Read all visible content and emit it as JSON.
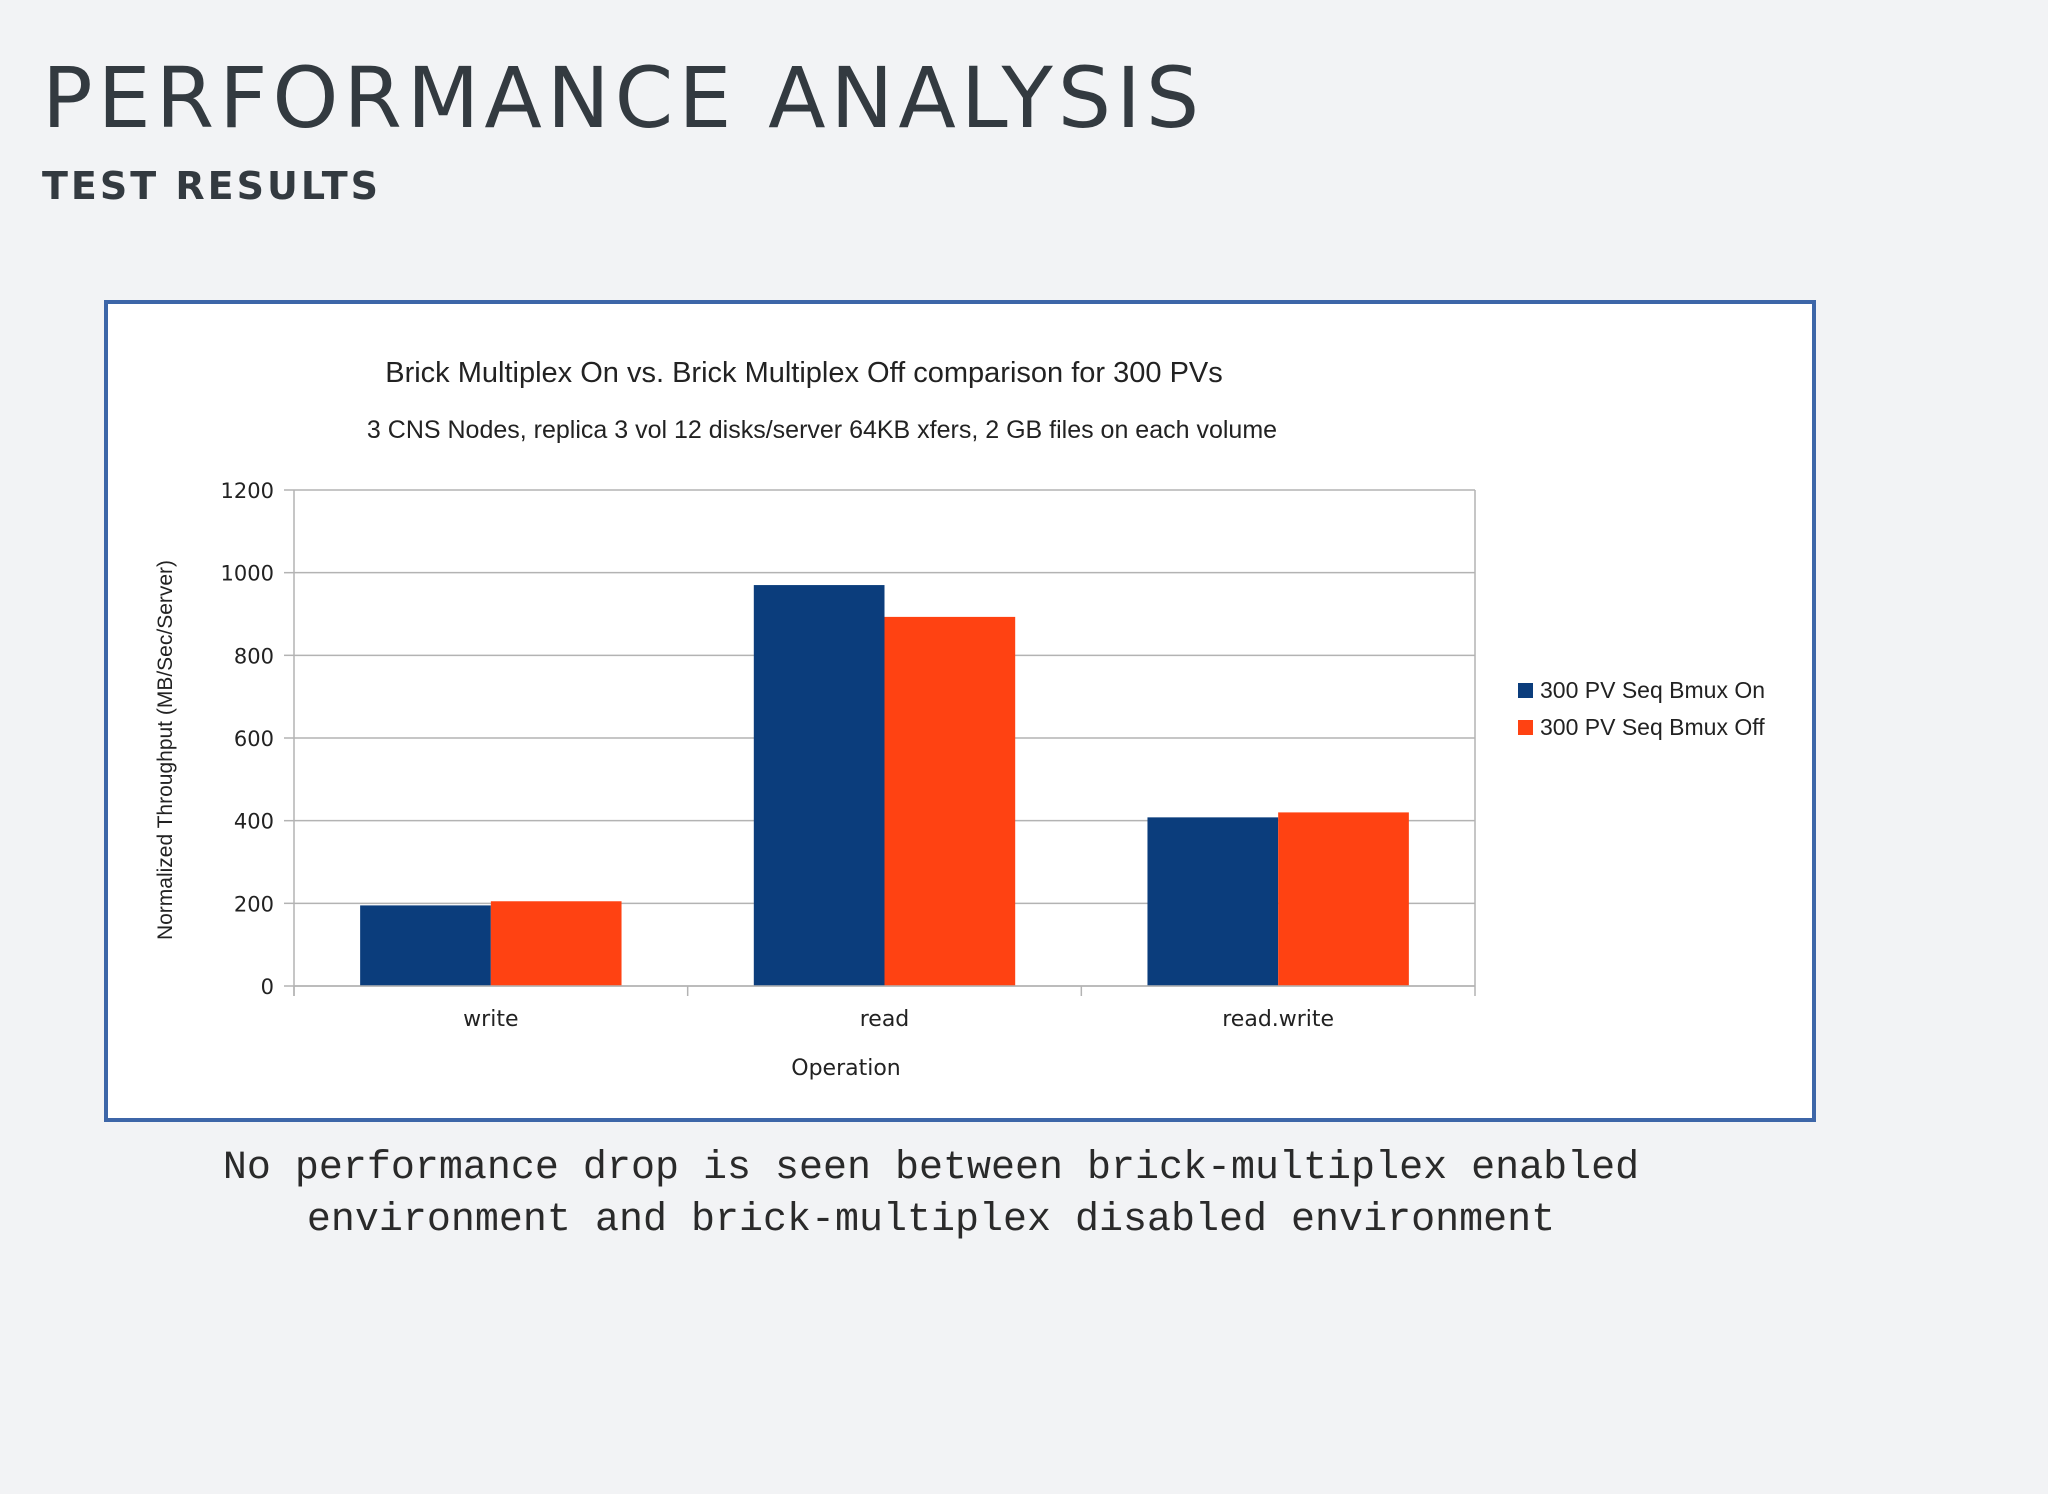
{
  "slide": {
    "title": "PERFORMANCE ANALYSIS",
    "subtitle": "TEST RESULTS",
    "caption_lines": [
      "No performance drop is seen between brick-multiplex enabled",
      "environment and brick-multiplex disabled environment"
    ]
  },
  "chart_data": {
    "type": "bar",
    "title": "Brick Multiplex On vs. Brick Multiplex Off comparison for 300 PVs",
    "subtitle": "3 CNS Nodes, replica 3 vol 12 disks/server 64KB xfers, 2 GB files on each volume",
    "xlabel": "Operation",
    "ylabel": "Normalized Throughput (MB/Sec/Server)",
    "categories": [
      "write",
      "read",
      "read.write"
    ],
    "series": [
      {
        "name": "300 PV Seq Bmux On",
        "color": "#0b3d7c",
        "values": [
          195,
          970,
          408
        ]
      },
      {
        "name": "300 PV Seq Bmux Off",
        "color": "#ff4212",
        "values": [
          205,
          893,
          420
        ]
      }
    ],
    "ylim": [
      0,
      1200
    ],
    "yticks": [
      0,
      200,
      400,
      600,
      800,
      1000,
      1200
    ],
    "grid": true,
    "legend": "right"
  }
}
